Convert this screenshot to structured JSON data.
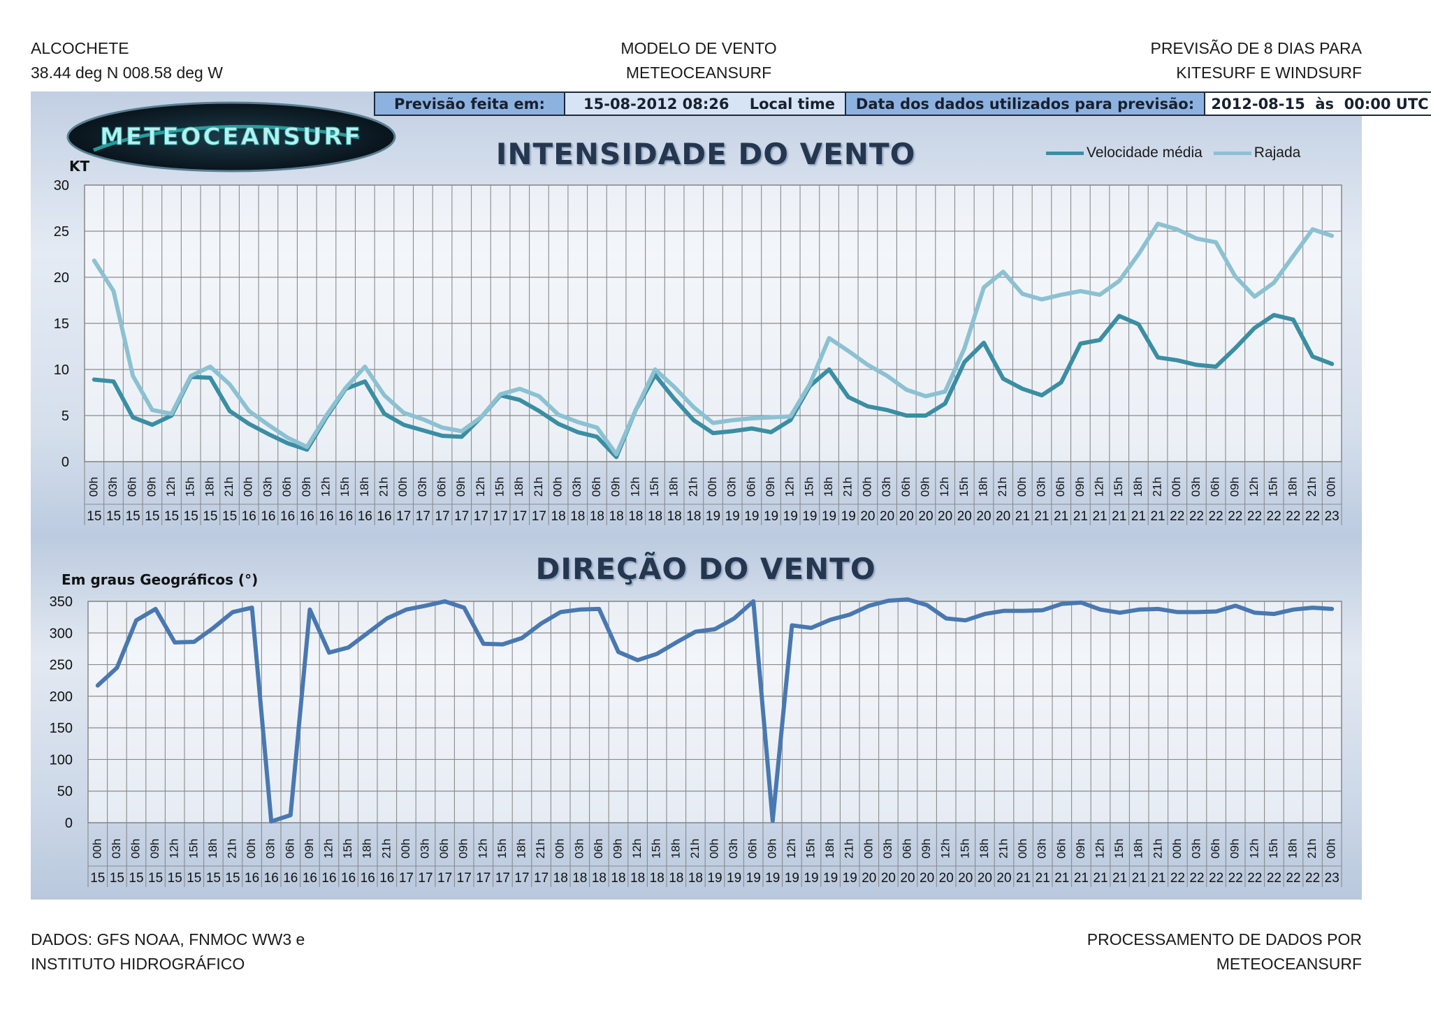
{
  "header": {
    "location": "ALCOCHETE",
    "coords": "38.44 deg N 008.58 deg W",
    "model_line1": "MODELO DE VENTO",
    "model_line2": "METEOCEANSURF",
    "forecast_line1": "PREVISÃO DE 8 DIAS PARA",
    "forecast_line2": "KITESURF E WINDSURF"
  },
  "info_bar": {
    "forecast_label": "Previsão feita em:",
    "forecast_date": "15-08-2012 08:26",
    "local_time": "Local time",
    "data_label": "Data dos dados utilizados para previsão:",
    "data_date": "2012-08-15  às  00:00 UTC"
  },
  "logo_text": "METEOCEANSURF",
  "footer": {
    "left_line1": "DADOS: GFS NOAA, FNMOC WW3 e",
    "left_line2": "INSTITUTO HIDROGRÁFICO",
    "right_line1": "PROCESSAMENTO DE DADOS POR",
    "right_line2": "METEOCEANSURF"
  },
  "colors": {
    "mean_speed": "#3a8ea3",
    "gust": "#8cc1d2",
    "direction": "#4978b0"
  },
  "chart_data": [
    {
      "type": "line",
      "title": "INTENSIDADE DO VENTO",
      "ylabel": "KT",
      "ylim": [
        0,
        30
      ],
      "yticks": [
        0,
        5,
        10,
        15,
        20,
        25,
        30
      ],
      "grid": true,
      "legend": "top-right",
      "hours": [
        "00h",
        "03h",
        "06h",
        "09h",
        "12h",
        "15h",
        "18h",
        "21h",
        "00h",
        "03h",
        "06h",
        "09h",
        "12h",
        "15h",
        "18h",
        "21h",
        "00h",
        "03h",
        "06h",
        "09h",
        "12h",
        "15h",
        "18h",
        "21h",
        "00h",
        "03h",
        "06h",
        "09h",
        "12h",
        "15h",
        "18h",
        "21h",
        "00h",
        "03h",
        "06h",
        "09h",
        "12h",
        "15h",
        "18h",
        "21h",
        "00h",
        "03h",
        "06h",
        "09h",
        "12h",
        "15h",
        "18h",
        "21h",
        "00h",
        "03h",
        "06h",
        "09h",
        "12h",
        "15h",
        "18h",
        "21h",
        "00h",
        "03h",
        "06h",
        "09h",
        "12h",
        "15h",
        "18h",
        "21h",
        "00h"
      ],
      "days": [
        "15",
        "15",
        "15",
        "15",
        "15",
        "15",
        "15",
        "15",
        "16",
        "16",
        "16",
        "16",
        "16",
        "16",
        "16",
        "16",
        "17",
        "17",
        "17",
        "17",
        "17",
        "17",
        "17",
        "17",
        "18",
        "18",
        "18",
        "18",
        "18",
        "18",
        "18",
        "18",
        "19",
        "19",
        "19",
        "19",
        "19",
        "19",
        "19",
        "19",
        "20",
        "20",
        "20",
        "20",
        "20",
        "20",
        "20",
        "20",
        "21",
        "21",
        "21",
        "21",
        "21",
        "21",
        "21",
        "21",
        "22",
        "22",
        "22",
        "22",
        "22",
        "22",
        "22",
        "22",
        "23"
      ],
      "series": [
        {
          "name": "Velocidade média",
          "values": [
            8.9,
            8.7,
            4.8,
            4.0,
            5.0,
            9.2,
            9.1,
            5.5,
            4.1,
            3.0,
            2.0,
            1.3,
            4.8,
            7.9,
            8.7,
            5.2,
            4.0,
            3.4,
            2.8,
            2.7,
            4.8,
            7.2,
            6.7,
            5.5,
            4.1,
            3.2,
            2.7,
            0.5,
            5.6,
            9.4,
            6.8,
            4.5,
            3.1,
            3.3,
            3.6,
            3.2,
            4.5,
            8.2,
            10.0,
            7.0,
            6.0,
            5.6,
            5.0,
            5.0,
            6.3,
            10.8,
            12.9,
            9.0,
            7.9,
            7.2,
            8.6,
            12.8,
            13.2,
            15.8,
            14.9,
            11.3,
            11.0,
            10.5,
            10.3,
            12.3,
            14.5,
            15.9,
            15.4,
            11.4,
            10.6
          ]
        },
        {
          "name": "Rajada",
          "values": [
            21.8,
            18.5,
            9.3,
            5.6,
            5.2,
            9.3,
            10.3,
            8.4,
            5.5,
            4.0,
            2.6,
            1.6,
            5.0,
            8.0,
            10.3,
            7.2,
            5.3,
            4.6,
            3.7,
            3.3,
            4.8,
            7.3,
            7.9,
            7.1,
            5.1,
            4.3,
            3.7,
            0.8,
            5.6,
            10.0,
            8.1,
            5.9,
            4.2,
            4.5,
            4.7,
            4.8,
            4.9,
            8.4,
            13.4,
            12.0,
            10.5,
            9.3,
            7.8,
            7.1,
            7.6,
            12.3,
            18.9,
            20.6,
            18.2,
            17.6,
            18.1,
            18.5,
            18.1,
            19.6,
            22.5,
            25.8,
            25.2,
            24.2,
            23.8,
            20.1,
            17.9,
            19.4,
            22.3,
            25.2,
            24.5
          ]
        }
      ]
    },
    {
      "type": "line",
      "title": "DIREÇÃO DO VENTO",
      "ylabel": "Em graus Geográficos (°)",
      "ylim": [
        0,
        350
      ],
      "yticks": [
        0,
        50,
        100,
        150,
        200,
        250,
        300,
        350
      ],
      "grid": true,
      "series": [
        {
          "name": "",
          "values": [
            217,
            245,
            320,
            338,
            285,
            286,
            308,
            333,
            340,
            2,
            12,
            337,
            269,
            277,
            300,
            323,
            337,
            343,
            350,
            340,
            283,
            282,
            292,
            315,
            333,
            337,
            338,
            270,
            257,
            267,
            285,
            302,
            306,
            323,
            350,
            3,
            312,
            308,
            321,
            329,
            343,
            351,
            353,
            344,
            323,
            320,
            330,
            335,
            335,
            336,
            346,
            348,
            337,
            332,
            337,
            338,
            333,
            333,
            334,
            343,
            332,
            330,
            337,
            340,
            338
          ]
        }
      ]
    }
  ]
}
